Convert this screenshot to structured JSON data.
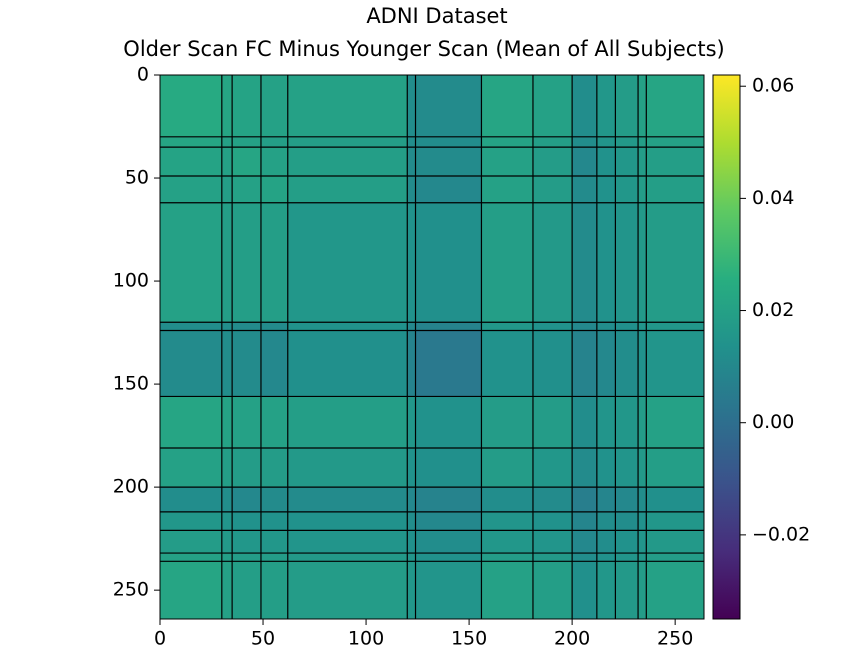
{
  "chart_data": {
    "type": "heatmap",
    "title": "ADNI Dataset",
    "subtitle": "Older Scan FC Minus Younger Scan (Mean of All Subjects)",
    "edges": [
      0,
      30,
      35,
      49,
      62,
      120,
      124,
      156,
      181,
      200,
      212,
      221,
      232,
      236,
      264
    ],
    "values": [
      [
        0.024,
        0.022,
        0.021,
        0.02,
        0.02,
        0.012,
        0.011,
        0.022,
        0.02,
        0.012,
        0.016,
        0.018,
        0.02,
        0.022
      ],
      [
        0.022,
        0.02,
        0.02,
        0.019,
        0.019,
        0.012,
        0.012,
        0.021,
        0.019,
        0.012,
        0.015,
        0.017,
        0.019,
        0.02
      ],
      [
        0.021,
        0.02,
        0.022,
        0.02,
        0.019,
        0.011,
        0.011,
        0.02,
        0.018,
        0.01,
        0.014,
        0.016,
        0.018,
        0.019
      ],
      [
        0.02,
        0.019,
        0.02,
        0.021,
        0.019,
        0.011,
        0.01,
        0.02,
        0.018,
        0.011,
        0.014,
        0.016,
        0.018,
        0.019
      ],
      [
        0.02,
        0.019,
        0.019,
        0.019,
        0.016,
        0.014,
        0.013,
        0.019,
        0.017,
        0.011,
        0.014,
        0.015,
        0.017,
        0.018
      ],
      [
        0.012,
        0.012,
        0.011,
        0.011,
        0.014,
        0.01,
        0.008,
        0.016,
        0.014,
        0.01,
        0.012,
        0.013,
        0.015,
        0.016
      ],
      [
        0.011,
        0.012,
        0.011,
        0.01,
        0.013,
        0.008,
        0.004,
        0.014,
        0.013,
        0.008,
        0.01,
        0.012,
        0.014,
        0.015
      ],
      [
        0.022,
        0.021,
        0.02,
        0.02,
        0.019,
        0.016,
        0.014,
        0.018,
        0.018,
        0.012,
        0.015,
        0.016,
        0.018,
        0.02
      ],
      [
        0.02,
        0.019,
        0.018,
        0.018,
        0.017,
        0.014,
        0.013,
        0.018,
        0.016,
        0.011,
        0.014,
        0.015,
        0.017,
        0.019
      ],
      [
        0.012,
        0.012,
        0.01,
        0.011,
        0.011,
        0.01,
        0.008,
        0.012,
        0.011,
        0.006,
        0.009,
        0.01,
        0.012,
        0.013
      ],
      [
        0.016,
        0.015,
        0.014,
        0.014,
        0.014,
        0.012,
        0.01,
        0.015,
        0.014,
        0.009,
        0.012,
        0.012,
        0.014,
        0.016
      ],
      [
        0.018,
        0.017,
        0.016,
        0.016,
        0.015,
        0.013,
        0.012,
        0.016,
        0.015,
        0.01,
        0.012,
        0.014,
        0.015,
        0.017
      ],
      [
        0.02,
        0.019,
        0.018,
        0.018,
        0.017,
        0.015,
        0.014,
        0.018,
        0.017,
        0.012,
        0.014,
        0.015,
        0.016,
        0.018
      ],
      [
        0.022,
        0.02,
        0.019,
        0.019,
        0.018,
        0.016,
        0.015,
        0.02,
        0.019,
        0.013,
        0.016,
        0.017,
        0.018,
        0.02
      ]
    ],
    "xlim": [
      0,
      264
    ],
    "xticks": [
      0,
      50,
      100,
      150,
      200,
      250
    ],
    "ylim": [
      264,
      0
    ],
    "yticks": [
      0,
      50,
      100,
      150,
      200,
      250
    ],
    "colormap": "viridis",
    "clim": [
      -0.035,
      0.062
    ],
    "cticks": [
      {
        "value": -0.02,
        "label": "−0.02"
      },
      {
        "value": 0,
        "label": "0.00"
      },
      {
        "value": 0.02,
        "label": "0.02"
      },
      {
        "value": 0.04,
        "label": "0.04"
      },
      {
        "value": 0.06,
        "label": "0.06"
      }
    ],
    "boundary_color": "#000000"
  }
}
